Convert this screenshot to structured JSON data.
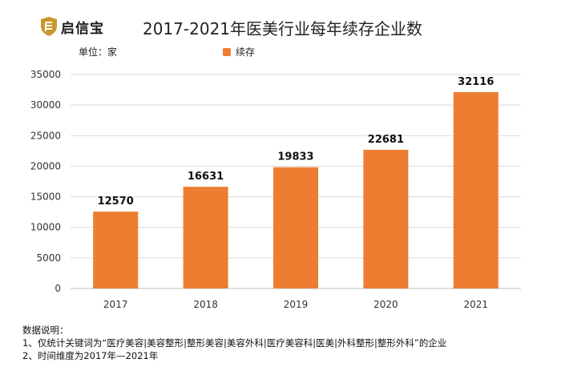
{
  "header": {
    "logo_text": "启信宝",
    "title": "2017-2021年医美行业每年续存企业数"
  },
  "unit_label": "单位：家",
  "colors": {
    "bar": "#ED7D31",
    "logo": "#C9992E"
  },
  "chart_data": {
    "type": "bar",
    "title": "2017-2021年医美行业每年续存企业数",
    "categories": [
      "2017",
      "2018",
      "2019",
      "2020",
      "2021"
    ],
    "series": [
      {
        "name": "续存",
        "values": [
          12570,
          16631,
          19833,
          22681,
          32116
        ]
      }
    ],
    "ylim": [
      0,
      35000
    ],
    "yticks": [
      0,
      5000,
      10000,
      15000,
      20000,
      25000,
      30000,
      35000
    ],
    "xlabel": "",
    "ylabel": "",
    "grid": true,
    "legend": "top"
  },
  "notes": {
    "heading": "数据说明：",
    "lines": [
      "1、仅统计关键词为“医疗美容|美容整形|整形美容|美容外科|医疗美容科|医美|外科整形|整形外科”的企业",
      "2、时间维度为2017年—2021年"
    ]
  }
}
